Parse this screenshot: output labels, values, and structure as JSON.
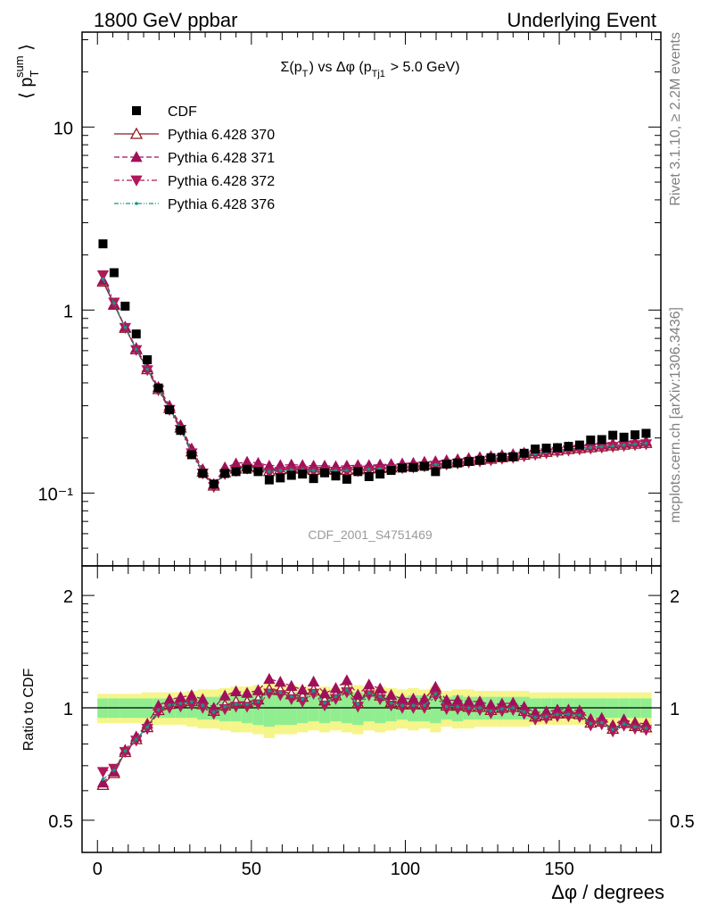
{
  "header": {
    "left": "1800 GeV ppbar",
    "right": "Underlying Event"
  },
  "side_labels": {
    "top": "Rivet 3.1.10, ≥ 2.2M events",
    "bottom": "mcplots.cern.ch [arXiv:1306.3436]"
  },
  "colors": {
    "data": "#000000",
    "p370": "#8b1a1a",
    "p371": "#a0105a",
    "p372": "#b0185a",
    "p376": "#129a80",
    "band_inner": "#90ee90",
    "band_outer": "#f5f58a"
  },
  "chart_data": [
    {
      "type": "scatter",
      "panel": "main",
      "title": "Σ(p_T) vs Δφ (p_Tj1 > 5.0 GeV)",
      "watermark": "CDF_2001_S4751469",
      "ylabel": "⟨ p_T^sum ⟩",
      "yscale": "log",
      "ylim": [
        0.04,
        33
      ],
      "xlim": [
        -5,
        183
      ],
      "y_ticks": [
        {
          "value": 10,
          "label": "10"
        },
        {
          "value": 1,
          "label": "1"
        },
        {
          "value": 0.1,
          "label": "10⁻¹"
        }
      ],
      "legend_position": "top-left",
      "x": [
        1.8,
        5.4,
        9,
        12.6,
        16.2,
        19.8,
        23.4,
        27,
        30.6,
        34.2,
        37.8,
        41.4,
        45,
        48.6,
        52.2,
        55.8,
        59.4,
        63,
        66.6,
        70.2,
        73.8,
        77.4,
        81,
        84.6,
        88.2,
        91.8,
        95.4,
        99,
        102.6,
        106.2,
        109.8,
        113.4,
        117,
        120.6,
        124.2,
        127.8,
        131.4,
        135,
        138.6,
        142.2,
        145.8,
        149.4,
        153,
        156.6,
        160.2,
        163.8,
        167.4,
        171,
        174.6,
        178.2
      ],
      "series": [
        {
          "name": "CDF",
          "marker": "square",
          "values": [
            2.3,
            1.6,
            1.05,
            0.74,
            0.535,
            0.375,
            0.285,
            0.22,
            0.162,
            0.128,
            0.112,
            0.128,
            0.131,
            0.135,
            0.131,
            0.118,
            0.121,
            0.125,
            0.127,
            0.12,
            0.129,
            0.124,
            0.119,
            0.131,
            0.123,
            0.127,
            0.133,
            0.137,
            0.138,
            0.14,
            0.131,
            0.144,
            0.146,
            0.149,
            0.151,
            0.156,
            0.157,
            0.158,
            0.165,
            0.174,
            0.176,
            0.177,
            0.18,
            0.183,
            0.195,
            0.196,
            0.207,
            0.202,
            0.208,
            0.212
          ]
        },
        {
          "name": "Pythia 6.428 370",
          "marker": "triangle-up-open",
          "line": "solid",
          "values": [
            1.43,
            1.07,
            0.8,
            0.61,
            0.475,
            0.37,
            0.292,
            0.228,
            0.169,
            0.131,
            0.11,
            0.13,
            0.136,
            0.14,
            0.138,
            0.132,
            0.135,
            0.136,
            0.136,
            0.134,
            0.135,
            0.134,
            0.134,
            0.135,
            0.136,
            0.137,
            0.138,
            0.14,
            0.141,
            0.143,
            0.144,
            0.146,
            0.148,
            0.15,
            0.152,
            0.154,
            0.157,
            0.159,
            0.162,
            0.165,
            0.168,
            0.171,
            0.174,
            0.176,
            0.178,
            0.18,
            0.182,
            0.184,
            0.186,
            0.188
          ]
        },
        {
          "name": "Pythia 6.428 371",
          "marker": "triangle-up",
          "line": "dashed",
          "values": [
            1.45,
            1.08,
            0.81,
            0.62,
            0.485,
            0.38,
            0.3,
            0.235,
            0.175,
            0.135,
            0.112,
            0.138,
            0.145,
            0.148,
            0.146,
            0.141,
            0.142,
            0.143,
            0.142,
            0.141,
            0.141,
            0.14,
            0.141,
            0.142,
            0.142,
            0.143,
            0.144,
            0.145,
            0.146,
            0.148,
            0.149,
            0.151,
            0.153,
            0.155,
            0.157,
            0.159,
            0.161,
            0.163,
            0.166,
            0.169,
            0.172,
            0.175,
            0.178,
            0.18,
            0.182,
            0.184,
            0.186,
            0.188,
            0.19,
            0.192
          ]
        },
        {
          "name": "Pythia 6.428 372",
          "marker": "triangle-down",
          "line": "dashdot",
          "values": [
            1.55,
            1.1,
            0.8,
            0.605,
            0.47,
            0.365,
            0.285,
            0.222,
            0.165,
            0.128,
            0.108,
            0.127,
            0.132,
            0.136,
            0.134,
            0.129,
            0.131,
            0.132,
            0.132,
            0.131,
            0.131,
            0.131,
            0.131,
            0.132,
            0.133,
            0.134,
            0.135,
            0.137,
            0.138,
            0.14,
            0.141,
            0.143,
            0.145,
            0.147,
            0.149,
            0.151,
            0.154,
            0.156,
            0.159,
            0.162,
            0.165,
            0.168,
            0.171,
            0.173,
            0.175,
            0.177,
            0.179,
            0.181,
            0.183,
            0.185
          ]
        },
        {
          "name": "Pythia 6.428 376",
          "marker": "dot",
          "line": "dashdotdot",
          "values": [
            1.48,
            1.09,
            0.805,
            0.61,
            0.475,
            0.37,
            0.29,
            0.226,
            0.168,
            0.13,
            0.109,
            0.129,
            0.134,
            0.138,
            0.136,
            0.131,
            0.133,
            0.134,
            0.134,
            0.133,
            0.133,
            0.133,
            0.133,
            0.134,
            0.135,
            0.136,
            0.137,
            0.139,
            0.14,
            0.142,
            0.143,
            0.145,
            0.147,
            0.149,
            0.151,
            0.153,
            0.156,
            0.158,
            0.161,
            0.164,
            0.167,
            0.17,
            0.173,
            0.175,
            0.177,
            0.179,
            0.181,
            0.183,
            0.185,
            0.187
          ]
        }
      ]
    },
    {
      "type": "scatter",
      "panel": "ratio",
      "ylabel": "Ratio to CDF",
      "xlabel": "Δφ / degrees",
      "yscale": "log",
      "ylim": [
        0.41,
        2.4
      ],
      "xlim": [
        -5,
        183
      ],
      "x_ticks": [
        0,
        50,
        100,
        150
      ],
      "y_ticks": [
        {
          "value": 2,
          "label": "2"
        },
        {
          "value": 1,
          "label": "1"
        },
        {
          "value": 0.5,
          "label": "0.5"
        }
      ],
      "band_inner": [
        0.06,
        0.06,
        0.06,
        0.06,
        0.06,
        0.06,
        0.06,
        0.06,
        0.06,
        0.07,
        0.07,
        0.08,
        0.08,
        0.09,
        0.1,
        0.11,
        0.1,
        0.1,
        0.09,
        0.08,
        0.09,
        0.08,
        0.09,
        0.1,
        0.08,
        0.09,
        0.08,
        0.07,
        0.08,
        0.08,
        0.09,
        0.07,
        0.08,
        0.07,
        0.07,
        0.07,
        0.07,
        0.07,
        0.07,
        0.06,
        0.06,
        0.06,
        0.06,
        0.06,
        0.06,
        0.06,
        0.06,
        0.06,
        0.06,
        0.06
      ],
      "band_outer": [
        0.09,
        0.09,
        0.09,
        0.09,
        0.1,
        0.1,
        0.1,
        0.1,
        0.11,
        0.12,
        0.12,
        0.13,
        0.14,
        0.14,
        0.15,
        0.17,
        0.15,
        0.15,
        0.14,
        0.13,
        0.14,
        0.13,
        0.14,
        0.15,
        0.13,
        0.14,
        0.13,
        0.12,
        0.13,
        0.12,
        0.14,
        0.11,
        0.12,
        0.12,
        0.11,
        0.11,
        0.11,
        0.11,
        0.11,
        0.1,
        0.1,
        0.1,
        0.1,
        0.1,
        0.1,
        0.1,
        0.1,
        0.1,
        0.1,
        0.1
      ]
    }
  ]
}
